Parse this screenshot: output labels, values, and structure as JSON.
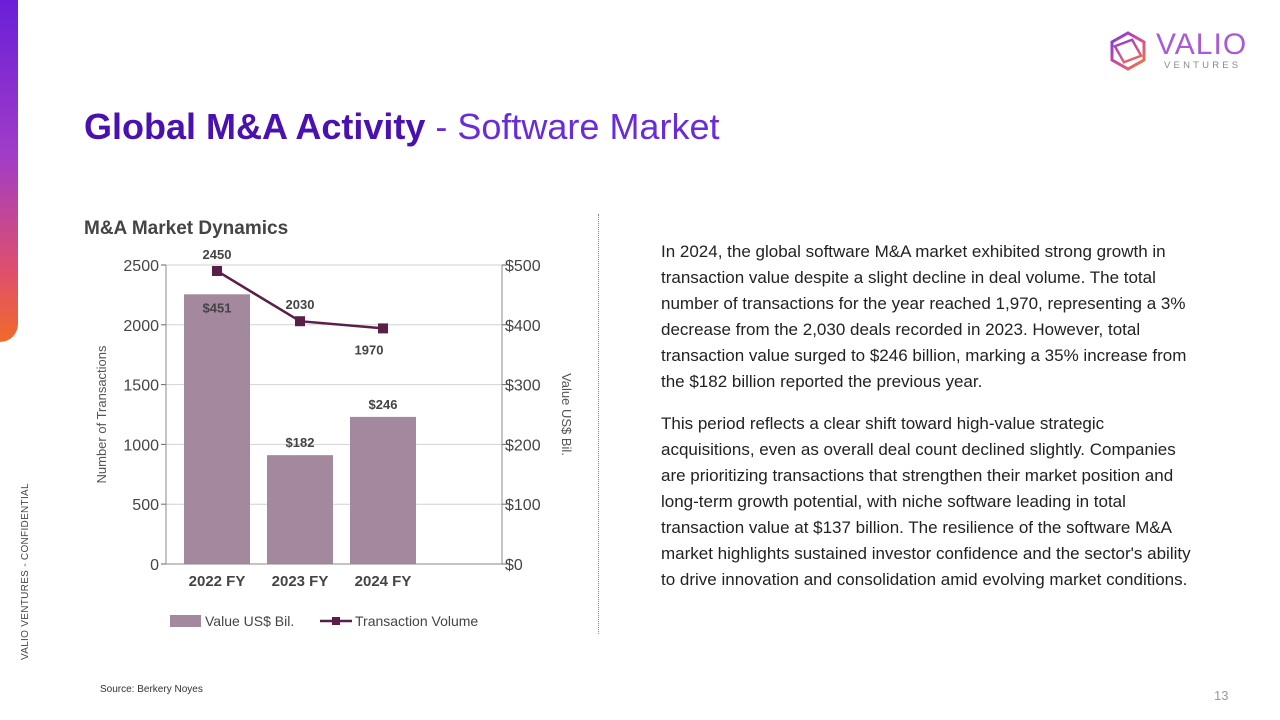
{
  "side_label": "VALIO VENTURES - CONFIDENTIAL",
  "logo": {
    "word": "VALIO",
    "sub": "VENTURES"
  },
  "title": {
    "bold": "Global M&A Activity",
    "separator": " - ",
    "light": "Software Market"
  },
  "body": {
    "p1": "In 2024, the global software M&A market exhibited strong growth in transaction value despite a slight decline in deal volume. The total number of transactions for the year reached 1,970, representing a 3% decrease from the 2,030 deals recorded in 2023. However, total transaction value surged to $246 billion, marking a 35% increase from the $182 billion reported the previous year.",
    "p2": "This period reflects a clear shift toward high-value strategic acquisitions, even as overall deal count declined slightly. Companies are prioritizing transactions that strengthen their market position and long-term growth potential, with niche software leading in total transaction value at $137 billion. The resilience of the software M&A market highlights sustained investor confidence and the sector's ability to drive innovation and consolidation amid evolving market conditions."
  },
  "source": "Source: Berkery Noyes",
  "page_number": "13",
  "colors": {
    "bar": "#a4889e",
    "line": "#5a1f48",
    "title": "#4a10b0",
    "accent": "#6a2bd8"
  },
  "chart_data": {
    "type": "bar",
    "title": "M&A Market Dynamics",
    "categories": [
      "2022 FY",
      "2023 FY",
      "2024 FY"
    ],
    "y_left": {
      "label": "Number of Transactions",
      "range": [
        0,
        2500
      ],
      "ticks": [
        "0",
        "500",
        "1000",
        "1500",
        "2000",
        "2500"
      ],
      "tick_values": [
        0,
        500,
        1000,
        1500,
        2000,
        2500
      ]
    },
    "y_right": {
      "label": "Value US$ Bil.",
      "range": [
        0,
        500
      ],
      "ticks": [
        "$0",
        "$100",
        "$200",
        "$300",
        "$400",
        "$500"
      ]
    },
    "grid": true,
    "legend_position": "bottom",
    "series": [
      {
        "name": "Value US$ Bil.",
        "type": "bar",
        "axis": "right",
        "values": [
          451,
          182,
          246
        ],
        "labels": [
          "$451",
          "$182",
          "$246"
        ]
      },
      {
        "name": "Transaction Volume",
        "type": "line",
        "axis": "left",
        "values": [
          2450,
          2030,
          1970
        ],
        "labels": [
          "2450",
          "2030",
          "1970"
        ]
      }
    ]
  }
}
